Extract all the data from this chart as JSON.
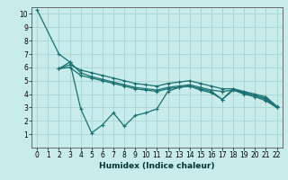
{
  "xlabel": "Humidex (Indice chaleur)",
  "bg_color": "#c8ecec",
  "grid_color": "#aad4d4",
  "line_color": "#1a7070",
  "xlim": [
    -0.5,
    22.5
  ],
  "ylim": [
    0,
    10.5
  ],
  "xticks": [
    0,
    1,
    2,
    3,
    4,
    5,
    6,
    7,
    8,
    9,
    10,
    11,
    12,
    13,
    14,
    15,
    16,
    17,
    18,
    19,
    20,
    21,
    22
  ],
  "yticks": [
    1,
    2,
    3,
    4,
    5,
    6,
    7,
    8,
    9,
    10
  ],
  "line1_x": [
    0,
    2,
    3,
    4,
    5,
    6,
    7,
    8,
    9,
    10,
    11,
    12,
    13,
    14,
    15,
    16,
    17,
    18,
    19,
    20,
    21,
    22
  ],
  "line1_y": [
    10.3,
    7.0,
    6.4,
    2.9,
    1.1,
    1.7,
    2.6,
    1.6,
    2.4,
    2.6,
    2.9,
    4.2,
    4.5,
    4.6,
    4.3,
    4.1,
    3.6,
    4.4,
    4.1,
    3.9,
    3.6,
    3.0
  ],
  "line2_x": [
    2,
    3,
    4,
    5,
    6,
    7,
    8,
    9,
    10,
    11,
    12,
    13,
    14,
    15,
    16,
    17,
    18,
    19,
    20,
    21,
    22
  ],
  "line2_y": [
    5.9,
    6.4,
    5.6,
    5.3,
    5.1,
    4.9,
    4.7,
    4.5,
    4.4,
    4.3,
    4.5,
    4.6,
    4.7,
    4.5,
    4.3,
    4.2,
    4.3,
    4.1,
    3.9,
    3.7,
    3.0
  ],
  "line3_x": [
    2,
    3,
    4,
    5,
    6,
    7,
    8,
    9,
    10,
    11,
    12,
    13,
    14,
    15,
    16,
    17,
    18,
    19,
    20,
    21,
    22
  ],
  "line3_y": [
    5.9,
    6.2,
    5.8,
    5.6,
    5.4,
    5.2,
    5.0,
    4.8,
    4.7,
    4.6,
    4.8,
    4.9,
    5.0,
    4.8,
    4.6,
    4.4,
    4.4,
    4.2,
    4.0,
    3.8,
    3.1
  ],
  "line4_x": [
    2,
    3,
    4,
    5,
    6,
    7,
    8,
    9,
    10,
    11,
    12,
    13,
    14,
    15,
    16,
    17,
    18,
    19,
    20,
    21,
    22
  ],
  "line4_y": [
    5.9,
    6.0,
    5.4,
    5.2,
    5.0,
    4.8,
    4.6,
    4.4,
    4.3,
    4.2,
    4.4,
    4.5,
    4.6,
    4.4,
    4.2,
    3.6,
    4.3,
    4.0,
    3.8,
    3.5,
    3.0
  ],
  "tick_fontsize": 5.5,
  "xlabel_fontsize": 6.5
}
